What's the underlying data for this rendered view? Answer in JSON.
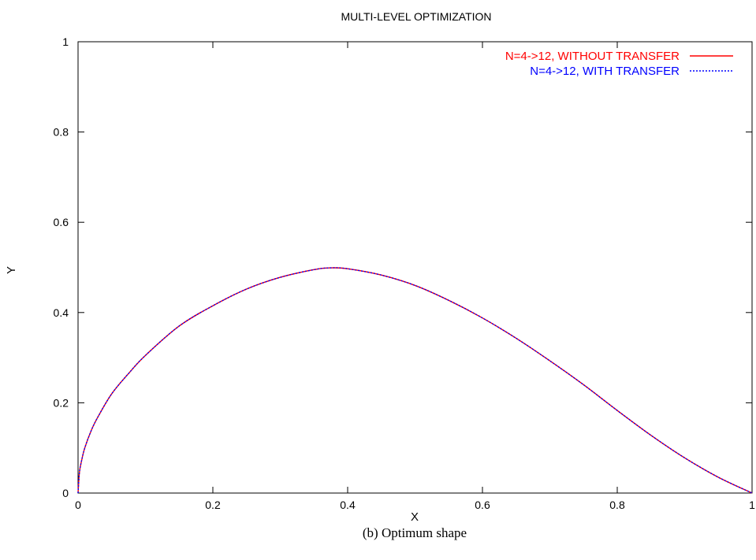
{
  "chart_data": {
    "type": "line",
    "title": "MULTI-LEVEL OPTIMIZATION",
    "xlabel": "X",
    "ylabel": "Y",
    "xlim": [
      0,
      1
    ],
    "ylim": [
      0,
      1
    ],
    "x_ticks": [
      "0",
      "0.2",
      "0.4",
      "0.6",
      "0.8",
      "1"
    ],
    "y_ticks": [
      "0",
      "0.2",
      "0.4",
      "0.6",
      "0.8",
      "1"
    ],
    "grid": false,
    "legend_position": "top-right",
    "series": [
      {
        "name": "N=4->12, WITHOUT TRANSFER",
        "color": "#ff0000",
        "style": "solid",
        "x": [
          0,
          0.002,
          0.005,
          0.01,
          0.02,
          0.03,
          0.05,
          0.075,
          0.1,
          0.15,
          0.2,
          0.25,
          0.3,
          0.35,
          0.375,
          0.4,
          0.45,
          0.5,
          0.55,
          0.6,
          0.65,
          0.7,
          0.75,
          0.8,
          0.85,
          0.9,
          0.95,
          1.0
        ],
        "y": [
          0,
          0.045,
          0.07,
          0.1,
          0.14,
          0.17,
          0.22,
          0.265,
          0.305,
          0.37,
          0.415,
          0.452,
          0.478,
          0.495,
          0.499,
          0.497,
          0.483,
          0.46,
          0.427,
          0.388,
          0.343,
          0.293,
          0.24,
          0.183,
          0.128,
          0.078,
          0.035,
          0.0
        ]
      },
      {
        "name": "N=4->12, WITH TRANSFER",
        "color": "#0000ff",
        "style": "dotted",
        "x": [
          0,
          0.002,
          0.005,
          0.01,
          0.02,
          0.03,
          0.05,
          0.075,
          0.1,
          0.15,
          0.2,
          0.25,
          0.3,
          0.35,
          0.375,
          0.4,
          0.45,
          0.5,
          0.55,
          0.6,
          0.65,
          0.7,
          0.75,
          0.8,
          0.85,
          0.9,
          0.95,
          1.0
        ],
        "y": [
          0,
          0.045,
          0.07,
          0.1,
          0.14,
          0.17,
          0.22,
          0.265,
          0.305,
          0.37,
          0.415,
          0.452,
          0.478,
          0.495,
          0.499,
          0.497,
          0.483,
          0.46,
          0.427,
          0.388,
          0.343,
          0.293,
          0.24,
          0.183,
          0.128,
          0.078,
          0.035,
          0.0
        ]
      }
    ]
  },
  "caption": "(b)  Optimum shape"
}
